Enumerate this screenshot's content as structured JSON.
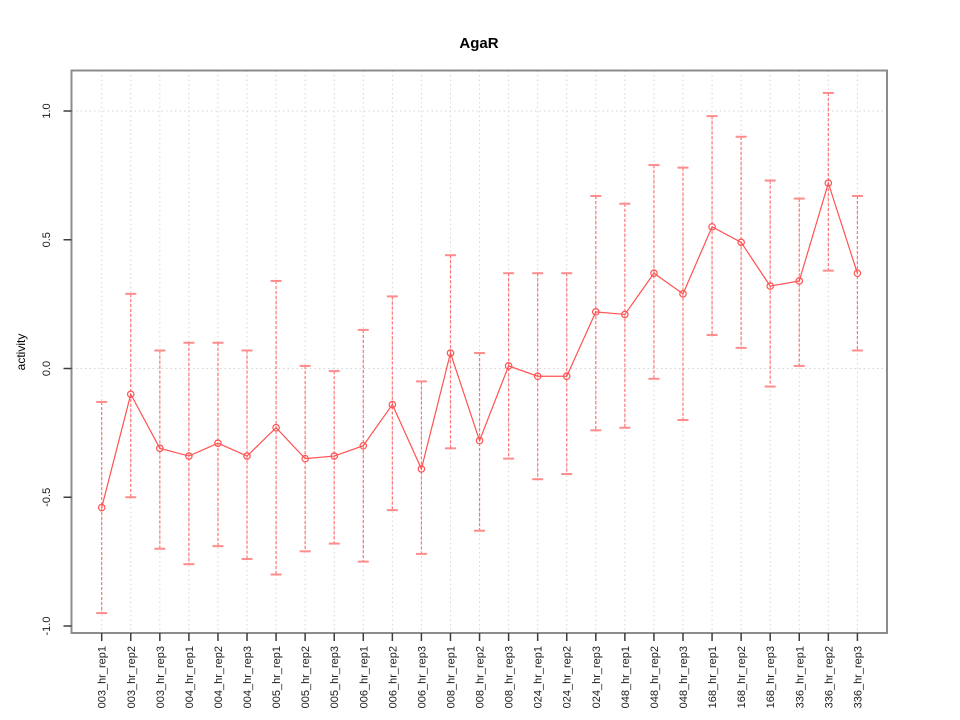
{
  "chart": {
    "y_tick_labels": [
      "1.0",
      "0.5",
      "0.0",
      "-0.5",
      "-1.0"
    ],
    "colors": {
      "series_red": "#ff5252",
      "error_bar_red": "#ff7575",
      "cap_red": "#ff8c8c",
      "gridline_gray": "#d6d6d6",
      "box_gray": "#8c8c8c",
      "tick_dark": "#3d3d3d",
      "text_black": "#1a1a1a",
      "background": "#ffffff"
    }
  },
  "chart_data": {
    "type": "line",
    "title": "AgaR",
    "xlabel": "",
    "ylabel": "activity",
    "marker": "open-circle",
    "error_bars": true,
    "legend": "none",
    "yticks": [
      1.0,
      0.5,
      0.0,
      -0.5,
      -1.0
    ],
    "ylim": [
      -1.03,
      1.16
    ],
    "grid": {
      "vertical": "per-category",
      "horizontal_at": [
        0.0,
        1.0
      ],
      "style": "dotted"
    },
    "categories": [
      "003_hr_rep1",
      "003_hr_rep2",
      "003_hr_rep3",
      "004_hr_rep1",
      "004_hr_rep2",
      "004_hr_rep3",
      "005_hr_rep1",
      "005_hr_rep2",
      "005_hr_rep3",
      "006_hr_rep1",
      "006_hr_rep2",
      "006_hr_rep3",
      "008_hr_rep1",
      "008_hr_rep2",
      "008_hr_rep3",
      "024_hr_rep1",
      "024_hr_rep2",
      "024_hr_rep3",
      "048_hr_rep1",
      "048_hr_rep2",
      "048_hr_rep3",
      "168_hr_rep1",
      "168_hr_rep2",
      "168_hr_rep3",
      "336_hr_rep1",
      "336_hr_rep2",
      "336_hr_rep3"
    ],
    "series": [
      {
        "name": "activity",
        "values": [
          -0.54,
          -0.1,
          -0.31,
          -0.34,
          -0.29,
          -0.34,
          -0.23,
          -0.35,
          -0.34,
          -0.3,
          -0.14,
          -0.39,
          0.06,
          -0.28,
          0.01,
          -0.03,
          -0.03,
          0.22,
          0.21,
          0.37,
          0.29,
          0.55,
          0.49,
          0.32,
          0.34,
          0.72,
          0.37
        ],
        "lower": [
          -0.95,
          -0.5,
          -0.7,
          -0.76,
          -0.69,
          -0.74,
          -0.8,
          -0.71,
          -0.68,
          -0.75,
          -0.55,
          -0.72,
          -0.31,
          -0.63,
          -0.35,
          -0.43,
          -0.41,
          -0.24,
          -0.23,
          -0.04,
          -0.2,
          0.13,
          0.08,
          -0.07,
          0.01,
          0.38,
          0.07
        ],
        "upper": [
          -0.13,
          0.29,
          0.07,
          0.1,
          0.1,
          0.07,
          0.34,
          0.01,
          -0.01,
          0.15,
          0.28,
          -0.05,
          0.44,
          0.06,
          0.37,
          0.37,
          0.37,
          0.67,
          0.64,
          0.79,
          0.78,
          0.98,
          0.9,
          0.73,
          0.66,
          1.07,
          0.67
        ]
      }
    ]
  }
}
